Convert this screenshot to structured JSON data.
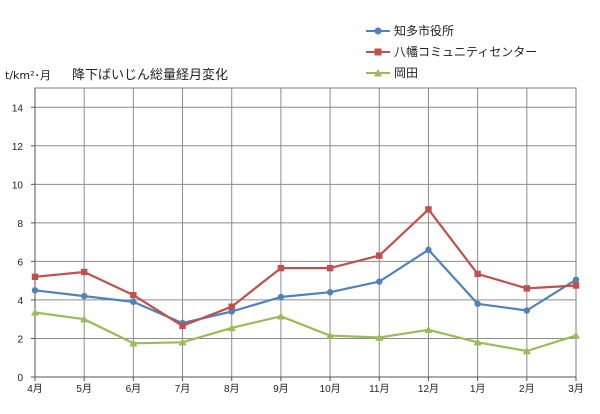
{
  "chart_data": {
    "type": "line",
    "title": "降下ばいじん総量経月変化",
    "ylabel": "t/km²･月",
    "xlabel": "",
    "categories": [
      "4月",
      "5月",
      "6月",
      "7月",
      "8月",
      "9月",
      "10月",
      "11月",
      "12月",
      "1月",
      "2月",
      "3月"
    ],
    "ylim": [
      0,
      15
    ],
    "yticks": [
      0,
      2,
      4,
      6,
      8,
      10,
      12,
      14
    ],
    "grid": true,
    "legend_position": "top-right",
    "series": [
      {
        "name": "知多市役所",
        "color": "#4f81bd",
        "marker": "circle",
        "values": [
          4.5,
          4.2,
          3.9,
          2.8,
          3.4,
          4.15,
          4.4,
          4.95,
          6.6,
          3.8,
          3.45,
          5.05
        ]
      },
      {
        "name": "八幡コミュニティセンター",
        "color": "#c0504d",
        "marker": "square",
        "values": [
          5.2,
          5.45,
          4.25,
          2.65,
          3.65,
          5.65,
          5.65,
          6.3,
          8.7,
          5.35,
          4.6,
          4.75
        ]
      },
      {
        "name": "岡田",
        "color": "#9bbb59",
        "marker": "triangle",
        "values": [
          3.35,
          3.0,
          1.75,
          1.8,
          2.55,
          3.15,
          2.15,
          2.05,
          2.45,
          1.8,
          1.35,
          2.15
        ]
      }
    ]
  }
}
